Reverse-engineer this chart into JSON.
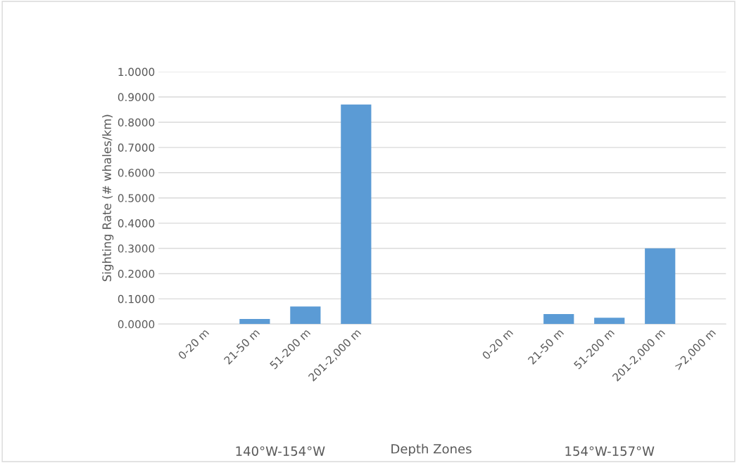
{
  "chart_data": {
    "type": "bar",
    "xlabel": "Depth Zones",
    "ylabel": "Sighting Rate (# whales/km)",
    "categories": [
      "0-20 m",
      "21-50 m",
      "51-200 m",
      "201-2,000 m",
      null,
      null,
      "0-20 m",
      "21-50 m",
      "51-200 m",
      "201-2,000 m",
      ">2,000 m"
    ],
    "values": [
      0,
      0.02,
      0.07,
      0.87,
      null,
      null,
      0,
      0.04,
      0.025,
      0.3,
      0
    ],
    "color": "#5b9bd5",
    "ylim": [
      0,
      1
    ],
    "yticks": [
      {
        "value": 0,
        "label": "0.0000"
      },
      {
        "value": 0.1,
        "label": "0.1000"
      },
      {
        "value": 0.2,
        "label": "0.2000"
      },
      {
        "value": 0.3,
        "label": "0.3000"
      },
      {
        "value": 0.4,
        "label": "0.4000"
      },
      {
        "value": 0.5,
        "label": "0.5000"
      },
      {
        "value": 0.6,
        "label": "0.6000"
      },
      {
        "value": 0.7,
        "label": "0.7000"
      },
      {
        "value": 0.8,
        "label": "0.8000"
      },
      {
        "value": 0.9,
        "label": "0.9000"
      },
      {
        "value": 1.0,
        "label": "1.0000"
      }
    ],
    "grid": "y",
    "annotations": [
      "140°W-154°W",
      "154°W-157°W"
    ]
  }
}
